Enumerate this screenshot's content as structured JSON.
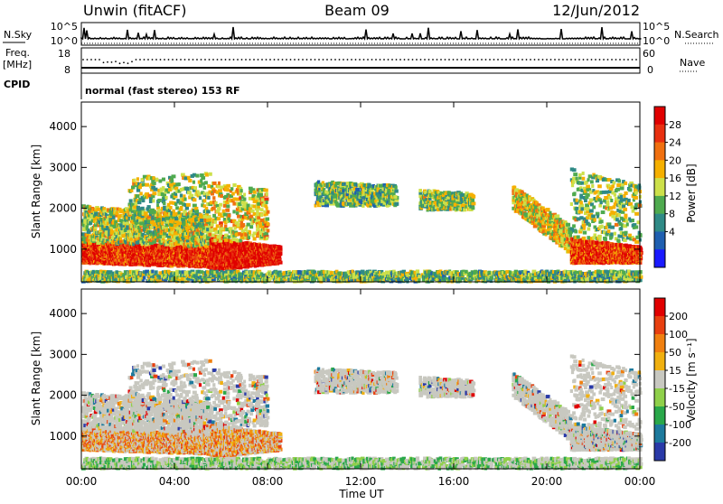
{
  "header": {
    "radar": "Unwin (fitACF)",
    "beam": "Beam 09",
    "date": "12/Jun/2012"
  },
  "noise_panel": {
    "left_label": "N.Sky",
    "right_label": "N.Search",
    "left_ticks": [
      "10^5",
      "10^0"
    ],
    "right_ticks": [
      "10^5",
      "10^0"
    ]
  },
  "freq_panel": {
    "left_label_1": "Freq.",
    "left_label_2": "[MHz]",
    "left_ticks": [
      "18",
      "8"
    ],
    "right_label": "Nave",
    "right_ticks": [
      "60",
      "0"
    ]
  },
  "cpid": {
    "label": "CPID",
    "value": "normal (fast stereo) 153 RF"
  },
  "colors": {
    "power_scale": [
      "#1a1aff",
      "#1f5fb0",
      "#2f8a86",
      "#4faa4f",
      "#cde04a",
      "#f5b000",
      "#f07010",
      "#e83010",
      "#e00000"
    ],
    "velocity_scale": [
      "#2a3aa8",
      "#1d7a9d",
      "#2aa84a",
      "#8fd04a",
      "#c8c8c0",
      "#f0b010",
      "#f08010",
      "#e84010",
      "#e00000"
    ]
  },
  "chart_data": [
    {
      "type": "heatmap",
      "name": "power",
      "ylabel": "Slant Range [km]",
      "ylim": [
        200,
        4600
      ],
      "y_ticks": [
        "4000",
        "3000",
        "2000",
        "1000"
      ],
      "colorbar_label": "Power [dB]",
      "colorbar_ticks": [
        "28",
        "24",
        "20",
        "16",
        "12",
        "8",
        "4"
      ],
      "clim": [
        0,
        32
      ]
    },
    {
      "type": "heatmap",
      "name": "velocity",
      "ylabel": "Slant Range [km]",
      "ylim": [
        200,
        4600
      ],
      "y_ticks": [
        "4000",
        "3000",
        "2000",
        "1000"
      ],
      "colorbar_label": "Velocity [m s⁻¹]",
      "colorbar_ticks": [
        "200",
        "100",
        "50",
        "15",
        "-15",
        "-50",
        "-100",
        "-200"
      ]
    }
  ],
  "x_axis": {
    "label": "Time UT",
    "ticks": [
      "00:00",
      "04:00",
      "08:00",
      "12:00",
      "16:00",
      "20:00",
      "00:00"
    ]
  }
}
